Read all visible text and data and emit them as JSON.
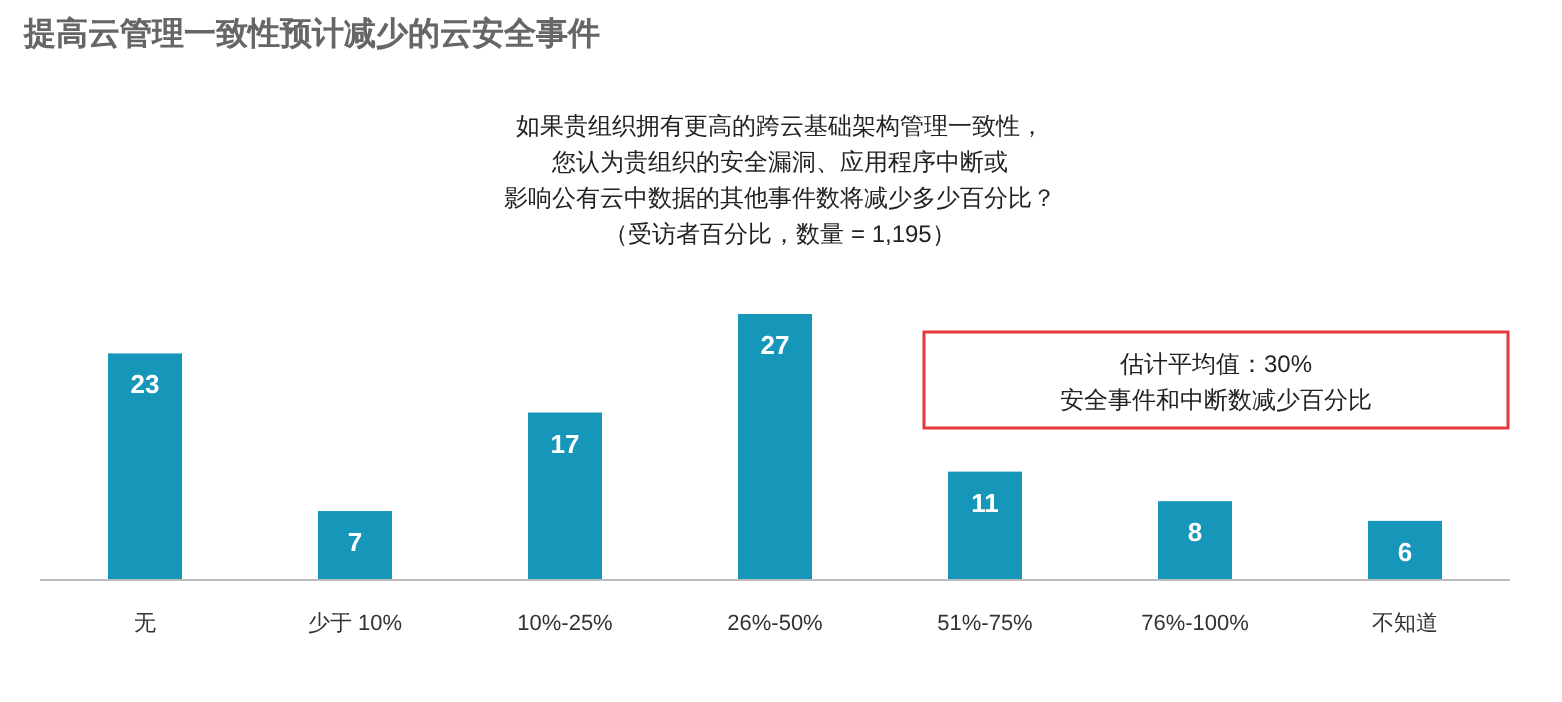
{
  "chart_data": {
    "type": "bar",
    "title": "提高云管理一致性预计减少的云安全事件",
    "categories": [
      "无",
      "少于 10%",
      "10%-25%",
      "26%-50%",
      "51%-75%",
      "76%-100%",
      "不知道"
    ],
    "values": [
      23,
      7,
      17,
      27,
      11,
      8,
      6
    ],
    "color": "#1696b9",
    "data_labels": true,
    "annotations": [
      "如果贵组织拥有更高的跨云基础架构管理一致性，",
      "您认为贵组织的安全漏洞、应用程序中断或",
      "影响公有云中数据的其他事件数将减少多少百分比？",
      "（受访者百分比，数量 = 1,195）",
      "估计平均值：30%",
      "安全事件和中断数减少百分比"
    ]
  }
}
